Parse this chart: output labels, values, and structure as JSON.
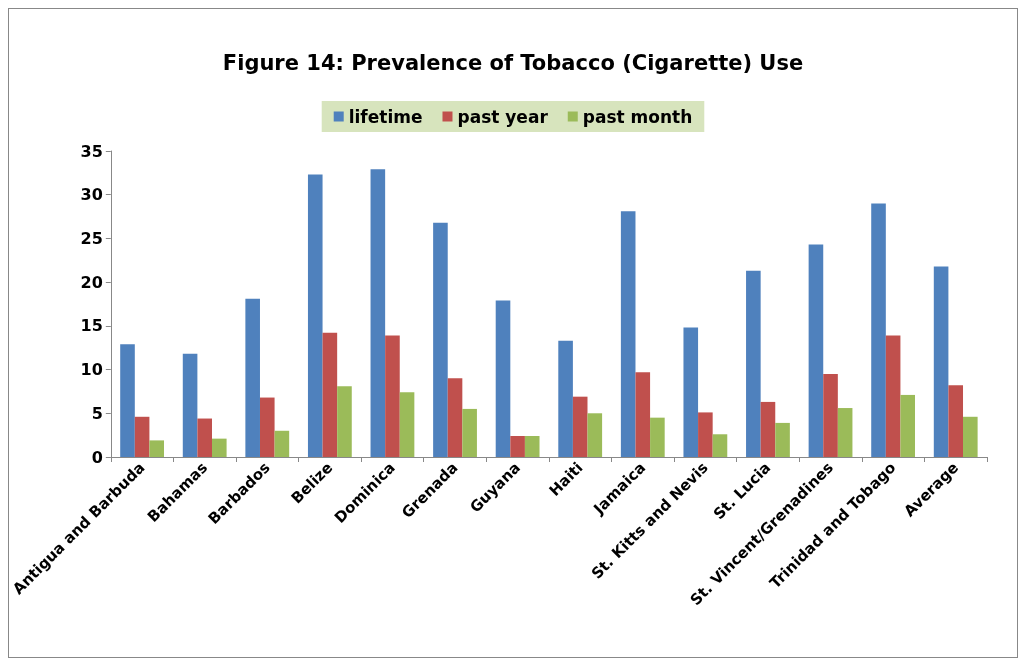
{
  "chart_data": {
    "type": "bar",
    "title": "Figure 14: Prevalence of Tobacco (Cigarette) Use",
    "categories": [
      "Antigua and Barbuda",
      "Bahamas",
      "Barbados",
      "Belize",
      "Dominica",
      "Grenada",
      "Guyana",
      "Haiti",
      "Jamaica",
      "St. Kitts and Nevis",
      "St. Lucia",
      "St. Vincent/Grenadines",
      "Trinidad and Tobago",
      "Average"
    ],
    "series": [
      {
        "name": "lifetime",
        "color": "#4f81bd",
        "values": [
          12.9,
          11.8,
          18.1,
          32.3,
          32.9,
          26.8,
          17.9,
          13.3,
          28.1,
          14.8,
          21.3,
          24.3,
          29.0,
          21.8
        ]
      },
      {
        "name": "past year",
        "color": "#c0504d",
        "values": [
          4.6,
          4.4,
          6.8,
          14.2,
          13.9,
          9.0,
          2.4,
          6.9,
          9.7,
          5.1,
          6.3,
          9.5,
          13.9,
          8.2
        ]
      },
      {
        "name": "past month",
        "color": "#9bbb59",
        "values": [
          1.9,
          2.1,
          3.0,
          8.1,
          7.4,
          5.5,
          2.4,
          5.0,
          4.5,
          2.6,
          3.9,
          5.6,
          7.1,
          4.6
        ]
      }
    ],
    "ylim": [
      0,
      35
    ],
    "yticks": [
      0,
      5,
      10,
      15,
      20,
      25,
      30,
      35
    ],
    "grid": false,
    "legend": "top"
  }
}
